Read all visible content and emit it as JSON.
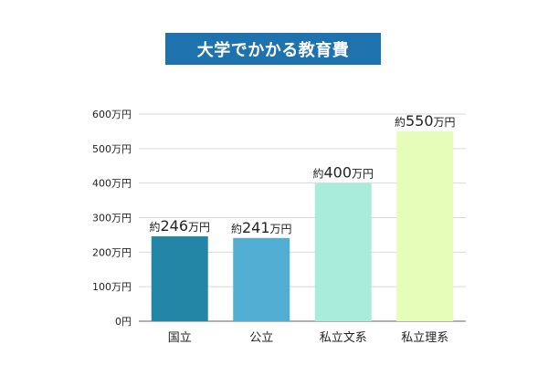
{
  "chart_data": {
    "type": "bar",
    "title": "大学でかかる教育費",
    "categories": [
      "国立",
      "公立",
      "私立文系",
      "私立理系"
    ],
    "values": [
      246,
      241,
      400,
      550
    ],
    "data_labels": [
      {
        "prefix": "約",
        "number": "246",
        "suffix": "万円"
      },
      {
        "prefix": "約",
        "number": "241",
        "suffix": "万円"
      },
      {
        "prefix": "約",
        "number": "400",
        "suffix": "万円"
      },
      {
        "prefix": "約",
        "number": "550",
        "suffix": "万円"
      }
    ],
    "y_ticks": [
      {
        "value": 0,
        "label": "0円"
      },
      {
        "value": 100,
        "label": "100万円"
      },
      {
        "value": 200,
        "label": "200万円"
      },
      {
        "value": 300,
        "label": "300万円"
      },
      {
        "value": 400,
        "label": "400万円"
      },
      {
        "value": 500,
        "label": "500万円"
      },
      {
        "value": 600,
        "label": "600万円"
      }
    ],
    "ylim": [
      0,
      600
    ],
    "grid": true,
    "legend": "none",
    "colors": [
      "#2386A6",
      "#52ADD2",
      "#A8EDD9",
      "#E6FCB9"
    ],
    "title_background": "#1E73AF",
    "grid_color": "#D9D9D9",
    "axis_color": "#999999"
  }
}
